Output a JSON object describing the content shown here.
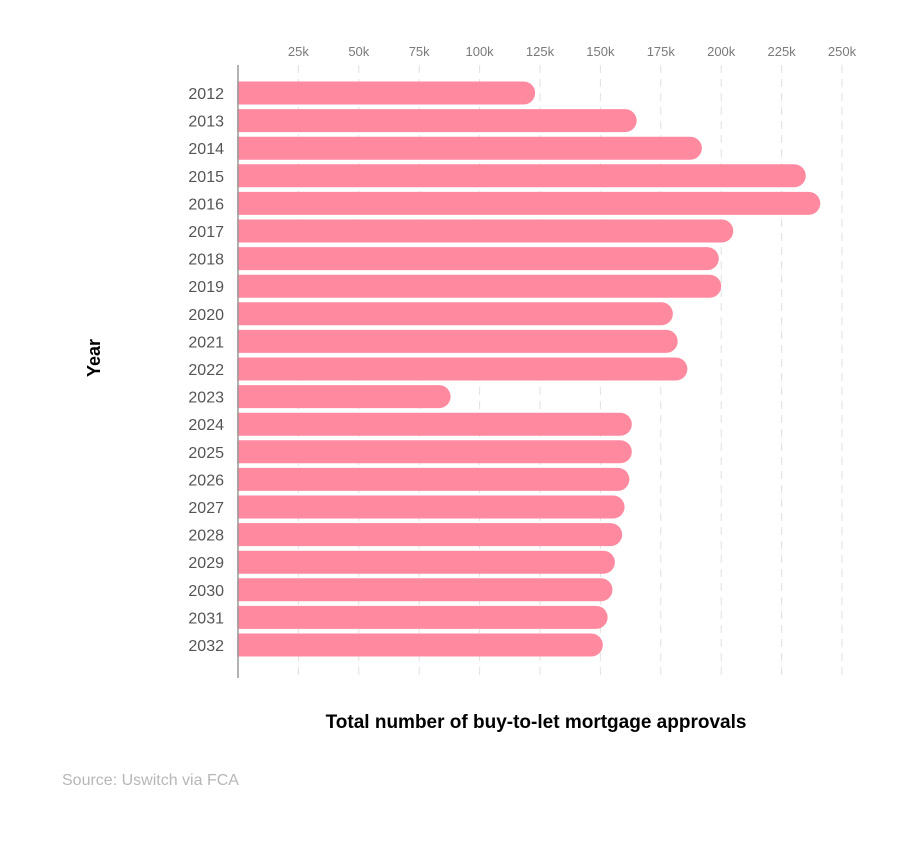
{
  "chart_data": {
    "type": "bar",
    "orientation": "horizontal",
    "categories": [
      "2012",
      "2013",
      "2014",
      "2015",
      "2016",
      "2017",
      "2018",
      "2019",
      "2020",
      "2021",
      "2022",
      "2023",
      "2024",
      "2025",
      "2026",
      "2027",
      "2028",
      "2029",
      "2030",
      "2031",
      "2032"
    ],
    "values": [
      123000,
      165000,
      192000,
      235000,
      241000,
      205000,
      199000,
      200000,
      180000,
      182000,
      186000,
      88000,
      163000,
      163000,
      162000,
      160000,
      159000,
      156000,
      155000,
      153000,
      151000
    ],
    "xlabel": "Total number of buy-to-let mortgage approvals",
    "ylabel": "Year",
    "xlim": [
      0,
      250000
    ],
    "xticks": [
      25000,
      50000,
      75000,
      100000,
      125000,
      150000,
      175000,
      200000,
      225000,
      250000
    ],
    "xtick_labels": [
      "25k",
      "50k",
      "75k",
      "100k",
      "125k",
      "150k",
      "175k",
      "200k",
      "225k",
      "250k"
    ],
    "x_axis_position": "top",
    "grid": "vertical dashed",
    "legend": "none",
    "bar_color": "#ff8aa0"
  },
  "source_text": "Source: Uswitch via FCA"
}
